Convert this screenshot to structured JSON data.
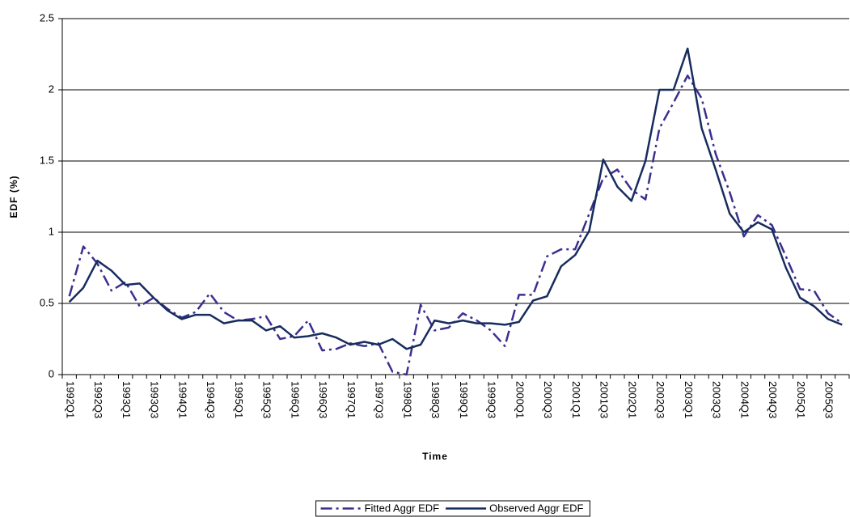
{
  "chart_data": {
    "type": "line",
    "xlabel": "Time",
    "ylabel": "EDF (%)",
    "categories": [
      "1992Q1",
      null,
      "1992Q3",
      null,
      "1993Q1",
      null,
      "1993Q3",
      null,
      "1994Q1",
      null,
      "1994Q3",
      null,
      "1995Q1",
      null,
      "1995Q3",
      null,
      "1996Q1",
      null,
      "1996Q3",
      null,
      "1997Q1",
      null,
      "1997Q3",
      null,
      "1998Q1",
      null,
      "1998Q3",
      null,
      "1999Q1",
      null,
      "1999Q3",
      null,
      "2000Q1",
      null,
      "2000Q3",
      null,
      "2001Q1",
      null,
      "2001Q3",
      null,
      "2002Q1",
      null,
      "2002Q3",
      null,
      "2003Q1",
      null,
      "2003Q3",
      null,
      "2004Q1",
      null,
      "2004Q3",
      null,
      "2005Q1",
      null,
      "2005Q3",
      null
    ],
    "series": [
      {
        "name": "Fitted Aggr EDF",
        "color": "#3b2f8f",
        "dash": true,
        "values": [
          0.55,
          0.9,
          0.78,
          0.59,
          0.65,
          0.48,
          0.54,
          0.46,
          0.4,
          0.44,
          0.57,
          0.44,
          0.38,
          0.39,
          0.41,
          0.25,
          0.27,
          0.38,
          0.17,
          0.18,
          0.22,
          0.2,
          0.22,
          0.02,
          0.0,
          0.49,
          0.31,
          0.33,
          0.43,
          0.38,
          0.31,
          0.2,
          0.56,
          0.56,
          0.83,
          0.88,
          0.88,
          1.13,
          1.38,
          1.44,
          1.3,
          1.23,
          1.73,
          1.91,
          2.1,
          1.94,
          1.55,
          1.28,
          0.97,
          1.12,
          1.05,
          0.83,
          0.6,
          0.59,
          0.43,
          0.36
        ]
      },
      {
        "name": "Observed Aggr EDF",
        "color": "#172c5e",
        "dash": false,
        "values": [
          0.51,
          0.61,
          0.8,
          0.73,
          0.63,
          0.64,
          0.54,
          0.45,
          0.39,
          0.42,
          0.42,
          0.36,
          0.38,
          0.38,
          0.31,
          0.34,
          0.26,
          0.27,
          0.29,
          0.26,
          0.21,
          0.23,
          0.21,
          0.25,
          0.18,
          0.21,
          0.38,
          0.36,
          0.38,
          0.36,
          0.36,
          0.35,
          0.37,
          0.52,
          0.55,
          0.76,
          0.84,
          1.01,
          1.51,
          1.32,
          1.22,
          1.5,
          2.0,
          2.0,
          2.29,
          1.73,
          1.44,
          1.13,
          1.0,
          1.07,
          1.02,
          0.75,
          0.54,
          0.48,
          0.39,
          0.35
        ]
      }
    ],
    "ylim": [
      0,
      2.5
    ],
    "yticks": [
      0,
      0.5,
      1,
      1.5,
      2,
      2.5
    ],
    "grid": true,
    "legend": "bottom"
  }
}
